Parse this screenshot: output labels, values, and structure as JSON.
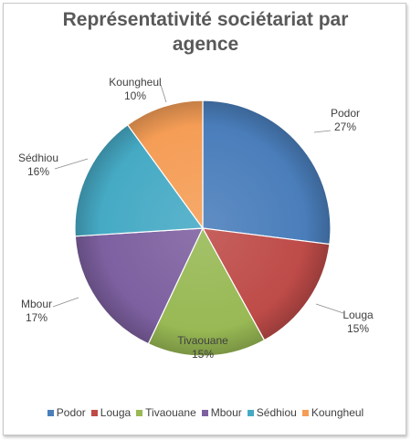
{
  "chart_data": {
    "type": "pie",
    "title": "Représentativité sociétariat par agence",
    "categories": [
      "Podor",
      "Louga",
      "Tivaouane",
      "Mbour",
      "Sédhiou",
      "Koungheul"
    ],
    "values": [
      27,
      15,
      15,
      17,
      16,
      10
    ],
    "data_labels": [
      "27%",
      "15%",
      "15%",
      "17%",
      "16%",
      "10%"
    ],
    "colors": [
      "#4a7ebb",
      "#be4b48",
      "#98b954",
      "#7d60a0",
      "#46aac5",
      "#f59d56"
    ],
    "start_angle_deg": 0,
    "direction": "clockwise",
    "legend_position": "bottom",
    "style": "3d-shaded"
  }
}
